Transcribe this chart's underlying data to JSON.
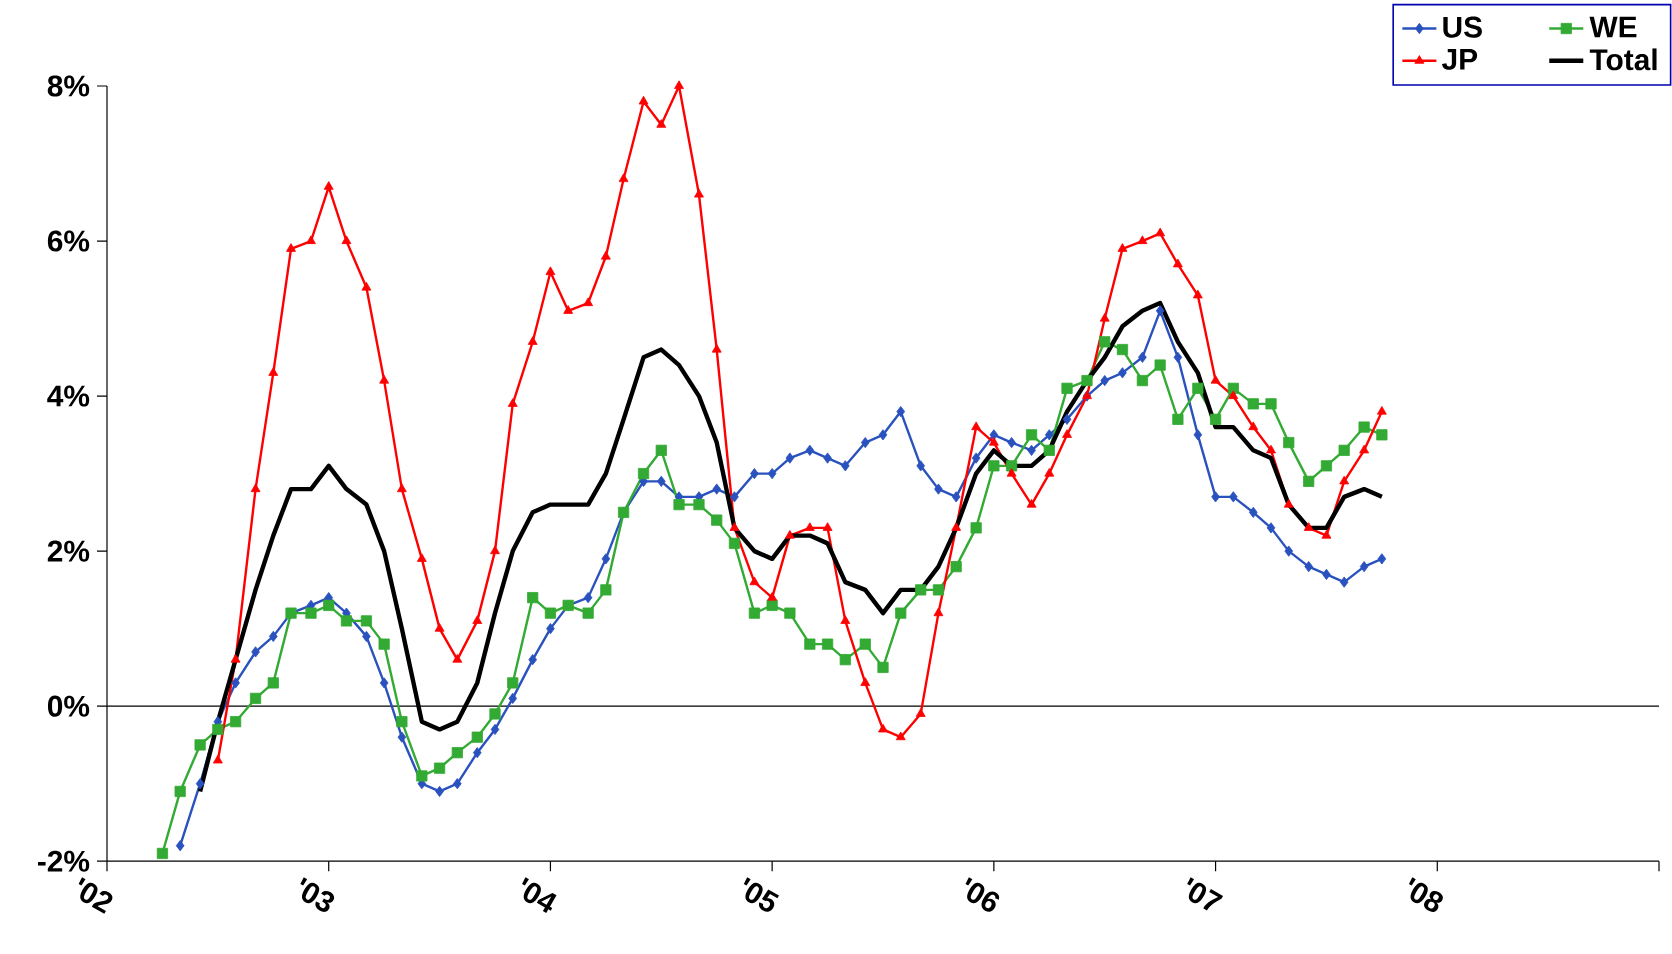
{
  "chart_data": {
    "type": "line",
    "x": [
      "2002-04",
      "2002-05",
      "2002-06",
      "2002-07",
      "2002-08",
      "2002-09",
      "2002-10",
      "2002-11",
      "2002-12",
      "2003-01",
      "2003-02",
      "2003-03",
      "2003-04",
      "2003-05",
      "2003-06",
      "2003-07",
      "2003-08",
      "2003-09",
      "2003-10",
      "2003-11",
      "2003-12",
      "2004-01",
      "2004-02",
      "2004-03",
      "2004-04",
      "2004-05",
      "2004-06",
      "2004-07",
      "2004-08",
      "2004-09",
      "2004-10",
      "2004-11",
      "2004-12",
      "2005-01",
      "2005-02",
      "2005-03",
      "2005-04",
      "2005-05",
      "2005-06",
      "2005-07",
      "2005-08",
      "2005-09",
      "2005-10",
      "2005-11",
      "2005-12",
      "2006-01",
      "2006-02",
      "2006-03",
      "2006-04",
      "2006-05",
      "2006-06",
      "2006-07",
      "2006-08",
      "2006-09",
      "2006-10",
      "2006-11",
      "2006-12",
      "2007-01",
      "2007-02",
      "2007-03",
      "2007-04",
      "2007-05",
      "2007-06",
      "2007-07",
      "2007-08",
      "2007-09",
      "2007-10"
    ],
    "series": [
      {
        "name": "US",
        "color": "#2a52be",
        "marker": "diamond",
        "values": [
          null,
          -1.8,
          -1.0,
          -0.2,
          0.3,
          0.7,
          0.9,
          1.2,
          1.3,
          1.4,
          1.2,
          0.9,
          0.3,
          -0.4,
          -1.0,
          -1.1,
          -1.0,
          -0.6,
          -0.3,
          0.1,
          0.6,
          1.0,
          1.3,
          1.4,
          1.9,
          2.5,
          2.9,
          2.9,
          2.7,
          2.7,
          2.8,
          2.7,
          3.0,
          3.0,
          3.2,
          3.3,
          3.2,
          3.1,
          3.4,
          3.5,
          3.8,
          3.1,
          2.8,
          2.7,
          3.2,
          3.5,
          3.4,
          3.3,
          3.5,
          3.7,
          4.0,
          4.2,
          4.3,
          4.5,
          5.1,
          4.5,
          3.5,
          2.7,
          2.7,
          2.5,
          2.3,
          2.0,
          1.8,
          1.7,
          1.6,
          1.8,
          1.9
        ]
      },
      {
        "name": "WE",
        "color": "#33aa33",
        "marker": "square",
        "values": [
          -1.9,
          -1.1,
          -0.5,
          -0.3,
          -0.2,
          0.1,
          0.3,
          1.2,
          1.2,
          1.3,
          1.1,
          1.1,
          0.8,
          -0.2,
          -0.9,
          -0.8,
          -0.6,
          -0.4,
          -0.1,
          0.3,
          1.4,
          1.2,
          1.3,
          1.2,
          1.5,
          2.5,
          3.0,
          3.3,
          2.6,
          2.6,
          2.4,
          2.1,
          1.2,
          1.3,
          1.2,
          0.8,
          0.8,
          0.6,
          0.8,
          0.5,
          1.2,
          1.5,
          1.5,
          1.8,
          2.3,
          3.1,
          3.1,
          3.5,
          3.3,
          4.1,
          4.2,
          4.7,
          4.6,
          4.2,
          4.4,
          3.7,
          4.1,
          3.7,
          4.1,
          3.9,
          3.9,
          3.4,
          2.9,
          3.1,
          3.3,
          3.6,
          3.5
        ]
      },
      {
        "name": "JP",
        "color": "#ff0000",
        "marker": "triangle",
        "values": [
          null,
          null,
          null,
          -0.7,
          0.6,
          2.8,
          4.3,
          5.9,
          6.0,
          6.7,
          6.0,
          5.4,
          4.2,
          2.8,
          1.9,
          1.0,
          0.6,
          1.1,
          2.0,
          3.9,
          4.7,
          5.6,
          5.1,
          5.2,
          5.8,
          6.8,
          7.8,
          7.5,
          8.0,
          6.6,
          4.6,
          2.3,
          1.6,
          1.4,
          2.2,
          2.3,
          2.3,
          1.1,
          0.3,
          -0.3,
          -0.4,
          -0.1,
          1.2,
          2.3,
          3.6,
          3.4,
          3.0,
          2.6,
          3.0,
          3.5,
          4.0,
          5.0,
          5.9,
          6.0,
          6.1,
          5.7,
          5.3,
          4.2,
          4.0,
          3.6,
          3.3,
          2.6,
          2.3,
          2.2,
          2.9,
          3.3,
          3.8
        ]
      },
      {
        "name": "Total",
        "color": "#000000",
        "marker": "none",
        "values": [
          null,
          null,
          -1.1,
          -0.2,
          0.6,
          1.5,
          2.2,
          2.8,
          2.8,
          3.1,
          2.8,
          2.6,
          2.0,
          1.0,
          -0.2,
          -0.3,
          -0.2,
          0.3,
          1.2,
          2.0,
          2.5,
          2.6,
          2.6,
          2.6,
          3.0,
          3.7,
          4.5,
          4.6,
          4.4,
          4.0,
          3.4,
          2.3,
          2.0,
          1.9,
          2.2,
          2.2,
          2.1,
          1.6,
          1.5,
          1.2,
          1.5,
          1.5,
          1.8,
          2.3,
          3.0,
          3.3,
          3.1,
          3.1,
          3.3,
          3.8,
          4.2,
          4.5,
          4.9,
          5.1,
          5.2,
          4.7,
          4.3,
          3.6,
          3.6,
          3.3,
          3.2,
          2.6,
          2.3,
          2.3,
          2.7,
          2.8,
          2.7
        ]
      }
    ],
    "xlim": [
      "2002",
      "2009"
    ],
    "xticks": [
      {
        "value": "2002",
        "label": "'02"
      },
      {
        "value": "2003",
        "label": "'03"
      },
      {
        "value": "2004",
        "label": "'04"
      },
      {
        "value": "2005",
        "label": "'05"
      },
      {
        "value": "2006",
        "label": "'06"
      },
      {
        "value": "2007",
        "label": "'07"
      },
      {
        "value": "2008",
        "label": "'08"
      },
      {
        "value": "2009",
        "label": null
      }
    ],
    "ylim": [
      -2,
      8
    ],
    "yticks": [
      {
        "value": -2,
        "label": "-2%"
      },
      {
        "value": 0,
        "label": "0%"
      },
      {
        "value": 2,
        "label": "2%"
      },
      {
        "value": 4,
        "label": "4%"
      },
      {
        "value": 6,
        "label": "6%"
      },
      {
        "value": 8,
        "label": "8%"
      }
    ],
    "ref_lines": [
      {
        "axis": "y",
        "value": 0,
        "color": "#000000"
      }
    ],
    "grid": false,
    "legend": "top right",
    "line_style": "solid"
  }
}
